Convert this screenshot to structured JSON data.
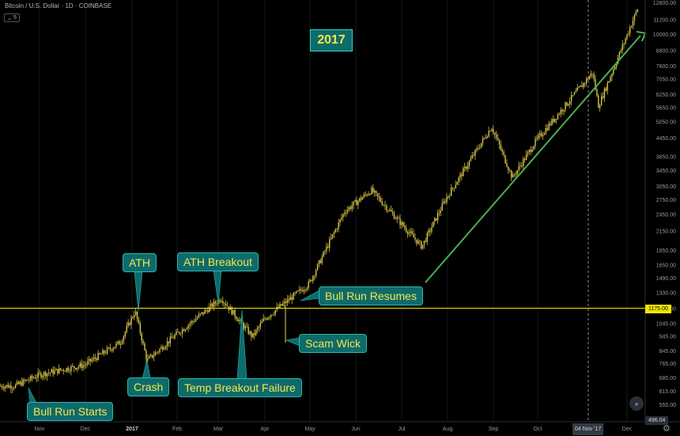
{
  "header": {
    "title": "Bitcoin / U.S. Dollar · 1D · COINBASE",
    "interval_label": "5"
  },
  "year_badge": "2017",
  "callouts": {
    "bull_run_starts": "Bull Run Starts",
    "ath": "ATH",
    "crash": "Crash",
    "ath_breakout": "ATH Breakout",
    "temp_breakout_failure": "Temp Breakout Failure",
    "scam_wick": "Scam Wick",
    "bull_run_resumes": "Bull Run Resumes"
  },
  "crosshair_date": "04 Nov '17",
  "price_tags": {
    "level": "1175.00",
    "bottom": "496.04"
  },
  "colors": {
    "candle": "#e8d44d",
    "level_line": "#f2e600",
    "trend_line": "#4caf50",
    "callout_bg": "#0e6b6b",
    "callout_text": "#f5e64a"
  },
  "chart_data": {
    "type": "candlestick",
    "scale": "log",
    "ylim": [
      496.04,
      12800
    ],
    "ytick_labels": [
      "12800.00",
      "11200.00",
      "10000.00",
      "8800.00",
      "7800.00",
      "7050.00",
      "6250.00",
      "5650.00",
      "5050.00",
      "4450.00",
      "3850.00",
      "3450.00",
      "3050.00",
      "2750.00",
      "2450.00",
      "2150.00",
      "1850.00",
      "1650.00",
      "1490.00",
      "1330.00",
      "1175.00",
      "1045.00",
      "945.00",
      "845.00",
      "765.00",
      "685.00",
      "615.00",
      "555.00"
    ],
    "xtick_labels": [
      "Nov",
      "Dec",
      "2017",
      "Feb",
      "Mar",
      "Apr",
      "May",
      "Jun",
      "Jul",
      "Aug",
      "Sep",
      "Oct",
      "Dec"
    ],
    "horizontal_level": 1175,
    "price_path": [
      {
        "date": "2016-10-15",
        "price": 640
      },
      {
        "date": "2016-11-01",
        "price": 700
      },
      {
        "date": "2016-12-01",
        "price": 755
      },
      {
        "date": "2016-12-25",
        "price": 900
      },
      {
        "date": "2017-01-04",
        "price": 1150
      },
      {
        "date": "2017-01-12",
        "price": 780
      },
      {
        "date": "2017-02-01",
        "price": 960
      },
      {
        "date": "2017-03-03",
        "price": 1270
      },
      {
        "date": "2017-03-24",
        "price": 940
      },
      {
        "date": "2017-04-01",
        "price": 1080
      },
      {
        "date": "2017-05-01",
        "price": 1420
      },
      {
        "date": "2017-05-25",
        "price": 2500
      },
      {
        "date": "2017-06-12",
        "price": 2950
      },
      {
        "date": "2017-07-16",
        "price": 1900
      },
      {
        "date": "2017-08-01",
        "price": 2750
      },
      {
        "date": "2017-09-01",
        "price": 4850
      },
      {
        "date": "2017-09-15",
        "price": 3250
      },
      {
        "date": "2017-10-01",
        "price": 4350
      },
      {
        "date": "2017-11-08",
        "price": 7400
      },
      {
        "date": "2017-11-12",
        "price": 5700
      },
      {
        "date": "2017-12-10",
        "price": 12800
      }
    ]
  }
}
